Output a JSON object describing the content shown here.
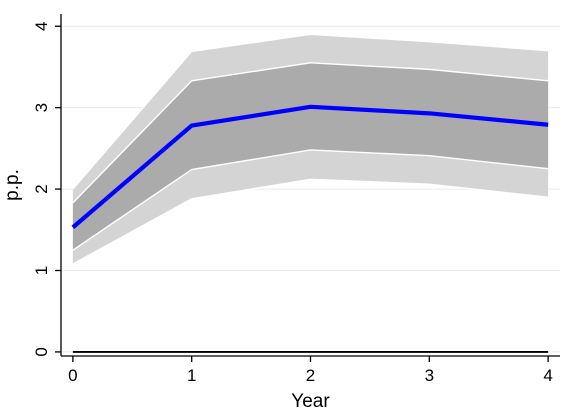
{
  "chart_data": {
    "type": "line",
    "title": "",
    "xlabel": "Year",
    "ylabel": "p.p.",
    "x": [
      0,
      1,
      2,
      3,
      4
    ],
    "xlim": [
      -0.1,
      4.1
    ],
    "ylim": [
      -0.05,
      4.15
    ],
    "xticks": [
      0,
      1,
      2,
      3,
      4
    ],
    "yticks": [
      0,
      1,
      2,
      3,
      4
    ],
    "grid": "horizontal",
    "legend": "none",
    "reference_line": 0,
    "series": [
      {
        "role": "point-estimate",
        "values": [
          1.53,
          2.78,
          3.01,
          2.93,
          2.79
        ],
        "color": "#0000ff"
      }
    ],
    "bands": [
      {
        "role": "outer",
        "lower": [
          1.08,
          1.88,
          2.12,
          2.06,
          1.9
        ],
        "upper": [
          2.0,
          3.69,
          3.9,
          3.81,
          3.7
        ],
        "color": "#d4d4d4"
      },
      {
        "role": "inner",
        "lower": [
          1.25,
          2.24,
          2.48,
          2.41,
          2.25
        ],
        "upper": [
          1.83,
          3.33,
          3.55,
          3.47,
          3.33
        ],
        "color": "#ababab"
      }
    ],
    "colors": {
      "reference_line": "#000000",
      "band_edge": "#ffffff",
      "grid": "#e8ecf1"
    }
  }
}
